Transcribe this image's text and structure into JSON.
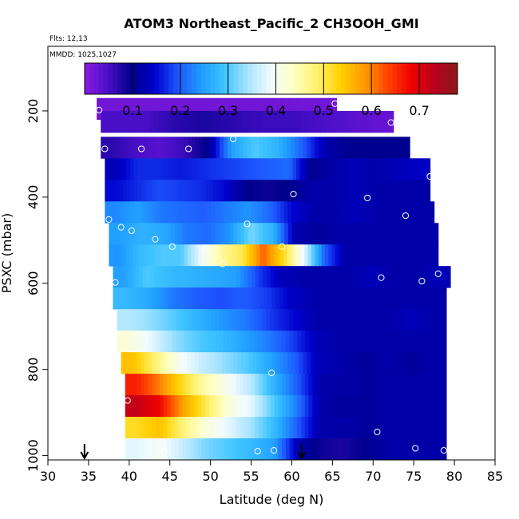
{
  "chart_data": {
    "type": "heatmap",
    "title": "ATOM3 Northeast_Pacific_2 CH3OOH_GMI",
    "subtitle_flights": "Flts: 12,13",
    "subtitle_dates": "MMDD: 1025,1027",
    "xlabel": "Latitude (deg N)",
    "ylabel": "PSXC (mbar)",
    "xlim": [
      30,
      85
    ],
    "ylim": [
      1010,
      50
    ],
    "xticks": [
      30,
      35,
      40,
      45,
      50,
      55,
      60,
      65,
      70,
      75,
      80,
      85
    ],
    "yticks": [
      200,
      400,
      600,
      800,
      1000
    ],
    "colorbar": {
      "range": [
        0.0,
        0.78
      ],
      "ticks": [
        0.1,
        0.2,
        0.3,
        0.4,
        0.5,
        0.6,
        0.7
      ],
      "colors": [
        "#8b1ae0",
        "#4b0fc9",
        "#00008b",
        "#0000cd",
        "#1e56ff",
        "#1f9bff",
        "#3fc4ff",
        "#a8e4ff",
        "#f2fbff",
        "#ffffc0",
        "#fff069",
        "#ffd000",
        "#ff9a00",
        "#ff4500",
        "#ee0000",
        "#b8001e",
        "#8b1a1a"
      ]
    },
    "layers": [
      {
        "p": 195,
        "lat": [
          36.0,
          65.5
        ],
        "vals": [
          0.02,
          0.02,
          0.02,
          0.02,
          0.02
        ]
      },
      {
        "p": 225,
        "lat": [
          36.5,
          72.5
        ],
        "vals": [
          0.05,
          0.05,
          0.07,
          0.08,
          0.07,
          0.06,
          0.06,
          0.05,
          0.04,
          0.03
        ]
      },
      {
        "p": 285,
        "lat": [
          36.5,
          74.5
        ],
        "vals": [
          0.07,
          0.05,
          0.04,
          0.06,
          0.1,
          0.25,
          0.3,
          0.27,
          0.2,
          0.12,
          0.1,
          0.1,
          0.1
        ]
      },
      {
        "p": 335,
        "lat": [
          37.0,
          77.0
        ],
        "vals": [
          0.13,
          0.17,
          0.17,
          0.16,
          0.17,
          0.18,
          0.19,
          0.2,
          0.21,
          0.1,
          0.12,
          0.13,
          0.12,
          0.13,
          0.14
        ]
      },
      {
        "p": 385,
        "lat": [
          37.0,
          77.0
        ],
        "vals": [
          0.15,
          0.17,
          0.19,
          0.18,
          0.17,
          0.15,
          0.1,
          0.09,
          0.1,
          0.12,
          0.12,
          0.13,
          0.12,
          0.12,
          0.12
        ]
      },
      {
        "p": 435,
        "lat": [
          37.0,
          77.5
        ],
        "vals": [
          0.23,
          0.25,
          0.22,
          0.21,
          0.2,
          0.22,
          0.24,
          0.21,
          0.15,
          0.12,
          0.12,
          0.13,
          0.12,
          0.12,
          0.12
        ]
      },
      {
        "p": 485,
        "lat": [
          37.5,
          78.0
        ],
        "vals": [
          0.25,
          0.27,
          0.26,
          0.22,
          0.21,
          0.24,
          0.32,
          0.27,
          0.12,
          0.11,
          0.12,
          0.12,
          0.12,
          0.12,
          0.12
        ]
      },
      {
        "p": 535,
        "lat": [
          37.5,
          78.0
        ],
        "vals": [
          0.24,
          0.28,
          0.3,
          0.3,
          0.39,
          0.46,
          0.5,
          0.62,
          0.52,
          0.38,
          0.2,
          0.12,
          0.12,
          0.12,
          0.12,
          0.12
        ]
      },
      {
        "p": 585,
        "lat": [
          38.0,
          79.5
        ],
        "vals": [
          0.25,
          0.3,
          0.28,
          0.27,
          0.26,
          0.25,
          0.18,
          0.13,
          0.12,
          0.12,
          0.12,
          0.13,
          0.12,
          0.12,
          0.13
        ]
      },
      {
        "p": 635,
        "lat": [
          38.0,
          79.0
        ],
        "vals": [
          0.28,
          0.26,
          0.22,
          0.2,
          0.19,
          0.2,
          0.18,
          0.14,
          0.12,
          0.12,
          0.12,
          0.12,
          0.12,
          0.12
        ]
      },
      {
        "p": 685,
        "lat": [
          38.5,
          79.0
        ],
        "vals": [
          0.35,
          0.33,
          0.3,
          0.27,
          0.24,
          0.22,
          0.18,
          0.15,
          0.12,
          0.12,
          0.12,
          0.12,
          0.13,
          0.12
        ]
      },
      {
        "p": 735,
        "lat": [
          38.5,
          79.0
        ],
        "vals": [
          0.42,
          0.38,
          0.33,
          0.3,
          0.28,
          0.25,
          0.22,
          0.18,
          0.13,
          0.12,
          0.12,
          0.12,
          0.12,
          0.12
        ]
      },
      {
        "p": 785,
        "lat": [
          39.0,
          79.0
        ],
        "vals": [
          0.55,
          0.48,
          0.4,
          0.36,
          0.33,
          0.3,
          0.25,
          0.2,
          0.13,
          0.12,
          0.11,
          0.12,
          0.11,
          0.12
        ]
      },
      {
        "p": 835,
        "lat": [
          39.5,
          79.0
        ],
        "vals": [
          0.66,
          0.6,
          0.52,
          0.45,
          0.4,
          0.35,
          0.27,
          0.2,
          0.12,
          0.12,
          0.11,
          0.12,
          0.12,
          0.12
        ]
      },
      {
        "p": 885,
        "lat": [
          39.5,
          79.0
        ],
        "vals": [
          0.72,
          0.68,
          0.58,
          0.5,
          0.42,
          0.38,
          0.3,
          0.22,
          0.12,
          0.11,
          0.11,
          0.12,
          0.12,
          0.12
        ]
      },
      {
        "p": 935,
        "lat": [
          39.5,
          79.0
        ],
        "vals": [
          0.52,
          0.55,
          0.48,
          0.42,
          0.38,
          0.34,
          0.28,
          0.2,
          0.12,
          0.12,
          0.11,
          0.12,
          0.12,
          0.12
        ]
      },
      {
        "p": 985,
        "lat": [
          39.5,
          79.0
        ],
        "vals": [
          0.38,
          0.4,
          0.36,
          0.32,
          0.3,
          0.28,
          0.25,
          0.13,
          0.09,
          0.08,
          0.1,
          0.12,
          0.12,
          0.12
        ]
      }
    ],
    "points": [
      {
        "lat": 36.3,
        "p": 198
      },
      {
        "lat": 65.3,
        "p": 183
      },
      {
        "lat": 72.2,
        "p": 227
      },
      {
        "lat": 37.0,
        "p": 288
      },
      {
        "lat": 41.5,
        "p": 288
      },
      {
        "lat": 47.3,
        "p": 288
      },
      {
        "lat": 52.8,
        "p": 265
      },
      {
        "lat": 77.0,
        "p": 352
      },
      {
        "lat": 60.2,
        "p": 393
      },
      {
        "lat": 69.3,
        "p": 402
      },
      {
        "lat": 37.5,
        "p": 452
      },
      {
        "lat": 39.0,
        "p": 470
      },
      {
        "lat": 54.5,
        "p": 462
      },
      {
        "lat": 74.0,
        "p": 443
      },
      {
        "lat": 40.3,
        "p": 478
      },
      {
        "lat": 43.2,
        "p": 498
      },
      {
        "lat": 45.3,
        "p": 515
      },
      {
        "lat": 49.5,
        "p": 518
      },
      {
        "lat": 58.8,
        "p": 515
      },
      {
        "lat": 51.5,
        "p": 555
      },
      {
        "lat": 38.3,
        "p": 598
      },
      {
        "lat": 71.0,
        "p": 587
      },
      {
        "lat": 76.0,
        "p": 595
      },
      {
        "lat": 78.0,
        "p": 578
      },
      {
        "lat": 57.5,
        "p": 808
      },
      {
        "lat": 39.8,
        "p": 872
      },
      {
        "lat": 70.5,
        "p": 945
      },
      {
        "lat": 44.3,
        "p": 990
      },
      {
        "lat": 55.8,
        "p": 990
      },
      {
        "lat": 57.8,
        "p": 988
      },
      {
        "lat": 75.2,
        "p": 983
      },
      {
        "lat": 78.7,
        "p": 988
      }
    ],
    "arrows_lat": [
      34.5,
      61.2
    ]
  }
}
